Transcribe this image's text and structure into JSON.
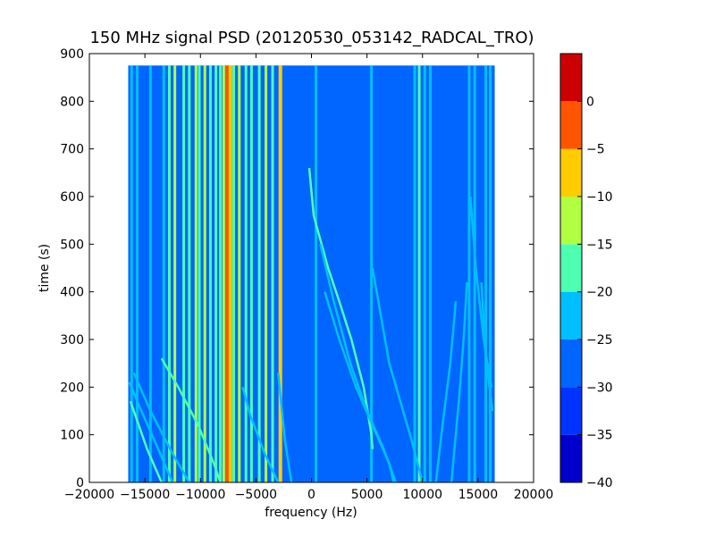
{
  "chart_data": {
    "type": "heatmap",
    "title": "150 MHz signal PSD (20120530_053142_RADCAL_TRO)",
    "xlabel": "frequency (Hz)",
    "ylabel": "time (s)",
    "xlim": [
      -20000,
      20000
    ],
    "ylim": [
      0,
      900
    ],
    "x_ticks": [
      -20000,
      -15000,
      -10000,
      -5000,
      0,
      5000,
      10000,
      15000,
      20000
    ],
    "x_tick_labels": [
      "−20000",
      "−15000",
      "−10000",
      "−5000",
      "0",
      "5000",
      "10000",
      "15000",
      "20000"
    ],
    "y_ticks": [
      0,
      100,
      200,
      300,
      400,
      500,
      600,
      700,
      800,
      900
    ],
    "y_tick_labels": [
      "0",
      "100",
      "200",
      "300",
      "400",
      "500",
      "600",
      "700",
      "800",
      "900"
    ],
    "data_extent": {
      "x": [
        -16500,
        16500
      ],
      "y": [
        0,
        875
      ]
    },
    "background_level": -27.5,
    "colorbar": {
      "levels": [
        -40,
        -35,
        -30,
        -25,
        -20,
        -15,
        -10,
        -5,
        0
      ],
      "tick_labels": [
        "−40",
        "−35",
        "−30",
        "−25",
        "−20",
        "−15",
        "−10",
        "−5",
        "0"
      ],
      "colors": [
        "#0000cc",
        "#0033ff",
        "#0066ff",
        "#00bfff",
        "#4dffb0",
        "#b0ff40",
        "#ffcc00",
        "#ff5500",
        "#cc0000"
      ]
    },
    "vertical_lines": [
      {
        "x": -16200,
        "level": -22.5
      },
      {
        "x": -15700,
        "level": -22.5
      },
      {
        "x": -14500,
        "level": -22.5
      },
      {
        "x": -13300,
        "level": -22.5
      },
      {
        "x": -12800,
        "level": -17.5
      },
      {
        "x": -12300,
        "level": -12.5
      },
      {
        "x": -11500,
        "level": -17.5
      },
      {
        "x": -11000,
        "level": -17.5
      },
      {
        "x": -10400,
        "level": -12.5
      },
      {
        "x": -10100,
        "level": -17.5
      },
      {
        "x": -9600,
        "level": -12.5
      },
      {
        "x": -9100,
        "level": -17.5
      },
      {
        "x": -8600,
        "level": -17.5
      },
      {
        "x": -8200,
        "level": -17.5
      },
      {
        "x": -7900,
        "level": -12.5
      },
      {
        "x": -7600,
        "level": -2.5
      },
      {
        "x": -7300,
        "level": -7.5
      },
      {
        "x": -7000,
        "level": -17.5
      },
      {
        "x": -6500,
        "level": -12.5
      },
      {
        "x": -5900,
        "level": -17.5
      },
      {
        "x": -5400,
        "level": -17.5
      },
      {
        "x": -4700,
        "level": -17.5
      },
      {
        "x": -4100,
        "level": -12.5
      },
      {
        "x": -3500,
        "level": -17.5
      },
      {
        "x": -2800,
        "level": -7.5
      },
      {
        "x": 400,
        "level": -22.5
      },
      {
        "x": 5400,
        "level": -22.5
      },
      {
        "x": 9300,
        "level": -22.5
      },
      {
        "x": 9700,
        "level": -17.5
      },
      {
        "x": 10200,
        "level": -22.5
      },
      {
        "x": 10700,
        "level": -22.5
      },
      {
        "x": 14200,
        "level": -22.5
      },
      {
        "x": 14700,
        "level": -22.5
      },
      {
        "x": 15700,
        "level": -22.5
      },
      {
        "x": 16100,
        "level": -22.5
      }
    ],
    "curved_tracks": [
      {
        "level": -17.5,
        "points": [
          [
            -8200,
            0
          ],
          [
            -8800,
            40
          ],
          [
            -10200,
            120
          ],
          [
            -12000,
            200
          ],
          [
            -13500,
            260
          ]
        ]
      },
      {
        "level": -22.5,
        "points": [
          [
            -12500,
            0
          ],
          [
            -14000,
            80
          ],
          [
            -15500,
            160
          ],
          [
            -16400,
            210
          ]
        ]
      },
      {
        "level": -22.5,
        "points": [
          [
            -11000,
            0
          ],
          [
            -12500,
            60
          ],
          [
            -14500,
            150
          ],
          [
            -16000,
            230
          ]
        ]
      },
      {
        "level": -17.5,
        "points": [
          [
            -13500,
            0
          ],
          [
            -14800,
            70
          ],
          [
            -16300,
            170
          ]
        ]
      },
      {
        "level": -22.5,
        "points": [
          [
            -3000,
            0
          ],
          [
            -4200,
            60
          ],
          [
            -5500,
            140
          ],
          [
            -6200,
            200
          ]
        ]
      },
      {
        "level": -22.5,
        "points": [
          [
            -1800,
            0
          ],
          [
            -2400,
            90
          ],
          [
            -3000,
            230
          ]
        ]
      },
      {
        "level": -17.5,
        "points": [
          [
            -200,
            660
          ],
          [
            200,
            560
          ],
          [
            1500,
            450
          ],
          [
            2500,
            380
          ],
          [
            3600,
            300
          ],
          [
            4700,
            200
          ],
          [
            5400,
            100
          ],
          [
            5500,
            70
          ]
        ]
      },
      {
        "level": -22.5,
        "points": [
          [
            800,
            500
          ],
          [
            2000,
            380
          ],
          [
            3500,
            250
          ],
          [
            5000,
            150
          ],
          [
            6500,
            70
          ],
          [
            7600,
            0
          ]
        ]
      },
      {
        "level": -22.5,
        "points": [
          [
            1200,
            400
          ],
          [
            2500,
            300
          ],
          [
            4000,
            200
          ],
          [
            5500,
            120
          ],
          [
            7000,
            40
          ],
          [
            7400,
            0
          ]
        ]
      },
      {
        "level": -22.5,
        "points": [
          [
            5500,
            450
          ],
          [
            7000,
            250
          ],
          [
            8000,
            170
          ],
          [
            9000,
            90
          ],
          [
            10000,
            0
          ]
        ]
      },
      {
        "level": -22.5,
        "points": [
          [
            13000,
            380
          ],
          [
            12500,
            250
          ],
          [
            11800,
            120
          ],
          [
            11200,
            0
          ]
        ]
      },
      {
        "level": -22.5,
        "points": [
          [
            14000,
            420
          ],
          [
            13700,
            300
          ],
          [
            13300,
            180
          ],
          [
            12800,
            50
          ],
          [
            12600,
            0
          ]
        ]
      },
      {
        "level": -22.5,
        "points": [
          [
            15300,
            420
          ],
          [
            15700,
            260
          ],
          [
            16300,
            150
          ]
        ]
      },
      {
        "level": -22.5,
        "points": [
          [
            14300,
            600
          ],
          [
            14800,
            450
          ],
          [
            15500,
            300
          ],
          [
            16200,
            200
          ]
        ]
      }
    ]
  }
}
